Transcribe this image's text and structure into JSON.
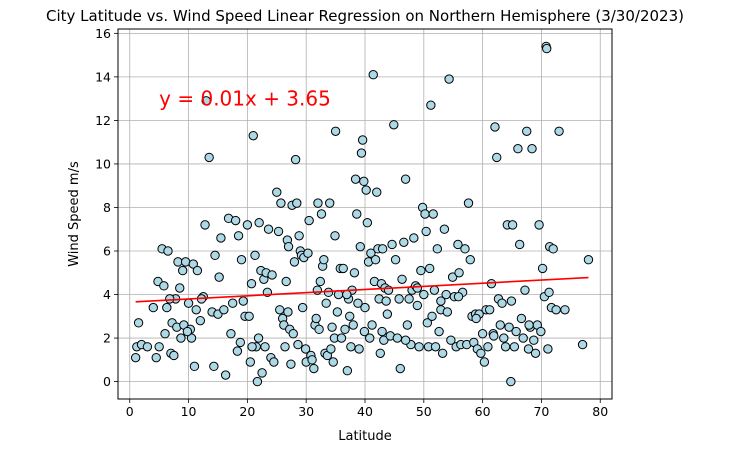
{
  "chart_data": {
    "type": "scatter",
    "title": "City Latitude vs. Wind Speed Linear Regression on Northern Hemisphere (3/30/2023)",
    "xlabel": "Latitude",
    "ylabel": "Wind Speed m/s",
    "xlim": [
      -2,
      82
    ],
    "ylim": [
      -0.8,
      16.2
    ],
    "xticks": [
      0,
      10,
      20,
      30,
      40,
      50,
      60,
      70,
      80
    ],
    "yticks": [
      0,
      2,
      4,
      6,
      8,
      10,
      12,
      14,
      16
    ],
    "grid": true,
    "point_color": "#add8e6",
    "point_edge_color": "#000000",
    "regression": {
      "equation": "y = 0.01x + 3.65",
      "slope": 0.0145,
      "intercept": 3.65,
      "x_range": [
        1,
        78
      ],
      "color": "#ff0000",
      "label_x": 5,
      "label_y": 13
    },
    "points": [
      [
        1,
        1.1
      ],
      [
        1.2,
        1.6
      ],
      [
        1.5,
        2.7
      ],
      [
        2,
        1.7
      ],
      [
        3,
        1.6
      ],
      [
        4,
        3.4
      ],
      [
        4.5,
        1.1
      ],
      [
        4.8,
        4.6
      ],
      [
        5,
        1.6
      ],
      [
        5.5,
        6.1
      ],
      [
        5.8,
        4.4
      ],
      [
        6,
        2.2
      ],
      [
        6.3,
        3.4
      ],
      [
        6.5,
        6.0
      ],
      [
        7,
        1.3
      ],
      [
        7.2,
        2.7
      ],
      [
        7.5,
        1.2
      ],
      [
        7.8,
        3.8
      ],
      [
        8,
        2.5
      ],
      [
        8.2,
        5.5
      ],
      [
        8.5,
        4.3
      ],
      [
        8.7,
        2.0
      ],
      [
        9,
        5.1
      ],
      [
        9.2,
        2.6
      ],
      [
        9.5,
        5.5
      ],
      [
        10,
        3.6
      ],
      [
        10.3,
        2.4
      ],
      [
        10.5,
        2.0
      ],
      [
        10.8,
        5.4
      ],
      [
        11,
        0.7
      ],
      [
        11.3,
        3.3
      ],
      [
        11.5,
        5.1
      ],
      [
        12,
        2.8
      ],
      [
        12.5,
        3.9
      ],
      [
        12.8,
        7.2
      ],
      [
        13,
        12.9
      ],
      [
        13.5,
        10.3
      ],
      [
        14,
        3.2
      ],
      [
        14.3,
        0.7
      ],
      [
        14.5,
        5.8
      ],
      [
        15,
        3.1
      ],
      [
        15.2,
        4.8
      ],
      [
        15.5,
        6.6
      ],
      [
        16,
        3.3
      ],
      [
        16.3,
        0.3
      ],
      [
        16.8,
        7.5
      ],
      [
        17.2,
        2.2
      ],
      [
        17.5,
        3.6
      ],
      [
        18,
        7.4
      ],
      [
        18.3,
        1.4
      ],
      [
        18.5,
        6.7
      ],
      [
        18.8,
        1.8
      ],
      [
        19,
        5.6
      ],
      [
        19.3,
        3.7
      ],
      [
        19.6,
        3.0
      ],
      [
        20,
        7.2
      ],
      [
        20.3,
        3.0
      ],
      [
        20.5,
        0.9
      ],
      [
        20.7,
        4.5
      ],
      [
        21,
        11.3
      ],
      [
        21.3,
        5.8
      ],
      [
        21.5,
        1.6
      ],
      [
        21.7,
        0.0
      ],
      [
        21.9,
        2.0
      ],
      [
        22,
        7.3
      ],
      [
        22.3,
        5.1
      ],
      [
        22.5,
        0.4
      ],
      [
        22.8,
        4.7
      ],
      [
        23,
        1.6
      ],
      [
        23.2,
        5.0
      ],
      [
        23.4,
        4.1
      ],
      [
        23.6,
        7.0
      ],
      [
        24,
        1.1
      ],
      [
        24.5,
        0.9
      ],
      [
        25,
        8.7
      ],
      [
        25.3,
        6.9
      ],
      [
        25.5,
        3.3
      ],
      [
        25.7,
        8.2
      ],
      [
        26,
        2.9
      ],
      [
        26.2,
        2.6
      ],
      [
        26.4,
        1.6
      ],
      [
        26.6,
        4.6
      ],
      [
        26.8,
        6.5
      ],
      [
        27,
        6.2
      ],
      [
        27.2,
        2.4
      ],
      [
        27.4,
        0.8
      ],
      [
        27.6,
        8.1
      ],
      [
        27.8,
        2.2
      ],
      [
        28,
        5.5
      ],
      [
        28.2,
        10.2
      ],
      [
        28.4,
        8.2
      ],
      [
        28.6,
        1.7
      ],
      [
        28.8,
        6.7
      ],
      [
        29,
        6.0
      ],
      [
        29.2,
        5.8
      ],
      [
        29.4,
        3.4
      ],
      [
        29.6,
        5.7
      ],
      [
        30,
        0.9
      ],
      [
        30.3,
        5.9
      ],
      [
        30.5,
        7.4
      ],
      [
        30.8,
        1.2
      ],
      [
        31,
        1.0
      ],
      [
        31.3,
        0.6
      ],
      [
        31.5,
        2.6
      ],
      [
        31.7,
        2.9
      ],
      [
        32,
        8.2
      ],
      [
        32.2,
        2.4
      ],
      [
        32.4,
        4.6
      ],
      [
        32.6,
        7.7
      ],
      [
        32.8,
        5.3
      ],
      [
        33,
        5.6
      ],
      [
        33.2,
        1.3
      ],
      [
        33.4,
        3.6
      ],
      [
        33.6,
        1.2
      ],
      [
        33.8,
        4.1
      ],
      [
        34,
        8.2
      ],
      [
        34.2,
        1.5
      ],
      [
        34.4,
        2.5
      ],
      [
        34.6,
        0.9
      ],
      [
        34.8,
        2.0
      ],
      [
        35,
        11.5
      ],
      [
        35.3,
        3.2
      ],
      [
        35.5,
        4.0
      ],
      [
        35.8,
        5.2
      ],
      [
        36,
        2.0
      ],
      [
        36.3,
        5.2
      ],
      [
        36.6,
        2.4
      ],
      [
        37,
        0.5
      ],
      [
        37.2,
        3.8
      ],
      [
        37.4,
        3.0
      ],
      [
        37.6,
        1.6
      ],
      [
        37.8,
        4.2
      ],
      [
        38,
        2.6
      ],
      [
        38.2,
        5.0
      ],
      [
        38.4,
        9.3
      ],
      [
        38.6,
        7.7
      ],
      [
        38.8,
        3.6
      ],
      [
        39,
        1.5
      ],
      [
        39.2,
        6.2
      ],
      [
        39.4,
        10.5
      ],
      [
        39.6,
        11.1
      ],
      [
        39.8,
        9.2
      ],
      [
        40,
        3.4
      ],
      [
        40.2,
        8.8
      ],
      [
        40.4,
        7.3
      ],
      [
        40.6,
        5.5
      ],
      [
        40.8,
        2.0
      ],
      [
        41,
        5.9
      ],
      [
        41.2,
        2.6
      ],
      [
        41.4,
        14.1
      ],
      [
        41.6,
        4.6
      ],
      [
        41.8,
        5.6
      ],
      [
        42,
        8.7
      ],
      [
        42.2,
        6.1
      ],
      [
        42.4,
        3.8
      ],
      [
        42.6,
        1.3
      ],
      [
        42.8,
        4.5
      ],
      [
        43,
        6.1
      ],
      [
        43.2,
        1.9
      ],
      [
        43.4,
        4.3
      ],
      [
        43.6,
        3.7
      ],
      [
        43.8,
        3.1
      ],
      [
        44,
        4.2
      ],
      [
        44.3,
        2.1
      ],
      [
        44.6,
        6.3
      ],
      [
        44.9,
        11.8
      ],
      [
        45.2,
        5.6
      ],
      [
        45.5,
        2.0
      ],
      [
        45.8,
        3.8
      ],
      [
        46,
        0.6
      ],
      [
        46.3,
        4.7
      ],
      [
        46.6,
        6.4
      ],
      [
        46.9,
        9.3
      ],
      [
        47.2,
        2.6
      ],
      [
        47.5,
        3.8
      ],
      [
        47.8,
        1.7
      ],
      [
        48,
        4.2
      ],
      [
        48.3,
        6.6
      ],
      [
        48.6,
        4.4
      ],
      [
        48.9,
        3.5
      ],
      [
        49.2,
        1.6
      ],
      [
        49.5,
        5.1
      ],
      [
        49.8,
        8.0
      ],
      [
        50,
        4.0
      ],
      [
        50.2,
        7.7
      ],
      [
        50.4,
        6.9
      ],
      [
        50.6,
        2.7
      ],
      [
        50.8,
        1.6
      ],
      [
        51,
        5.2
      ],
      [
        51.2,
        12.7
      ],
      [
        51.4,
        3.0
      ],
      [
        51.6,
        7.7
      ],
      [
        51.8,
        4.2
      ],
      [
        52,
        1.6
      ],
      [
        52.3,
        6.1
      ],
      [
        52.6,
        2.3
      ],
      [
        52.9,
        3.3
      ],
      [
        53.2,
        1.3
      ],
      [
        53.5,
        7.0
      ],
      [
        53.8,
        4.0
      ],
      [
        54,
        3.2
      ],
      [
        54.3,
        13.9
      ],
      [
        54.6,
        1.9
      ],
      [
        54.9,
        4.8
      ],
      [
        55.2,
        3.9
      ],
      [
        55.5,
        1.6
      ],
      [
        55.8,
        6.3
      ],
      [
        56,
        5.0
      ],
      [
        56.3,
        1.7
      ],
      [
        56.6,
        4.1
      ],
      [
        57,
        6.1
      ],
      [
        57.3,
        1.7
      ],
      [
        57.6,
        8.2
      ],
      [
        57.9,
        5.6
      ],
      [
        58.2,
        3.0
      ],
      [
        58.5,
        1.8
      ],
      [
        58.8,
        3.1
      ],
      [
        59.1,
        1.5
      ],
      [
        59.4,
        3.1
      ],
      [
        59.7,
        1.3
      ],
      [
        60,
        2.2
      ],
      [
        60.3,
        0.9
      ],
      [
        60.6,
        3.3
      ],
      [
        60.9,
        1.6
      ],
      [
        61.2,
        3.3
      ],
      [
        61.5,
        4.5
      ],
      [
        61.8,
        2.2
      ],
      [
        62.1,
        11.7
      ],
      [
        62.4,
        10.3
      ],
      [
        62.7,
        3.8
      ],
      [
        63,
        2.6
      ],
      [
        63.3,
        3.6
      ],
      [
        63.6,
        2.0
      ],
      [
        63.9,
        1.6
      ],
      [
        64.2,
        7.2
      ],
      [
        64.5,
        2.5
      ],
      [
        64.8,
        0.0
      ],
      [
        65.1,
        7.2
      ],
      [
        65.4,
        1.6
      ],
      [
        65.7,
        2.3
      ],
      [
        66,
        10.7
      ],
      [
        66.3,
        6.3
      ],
      [
        66.6,
        2.9
      ],
      [
        66.9,
        2.0
      ],
      [
        67.2,
        4.2
      ],
      [
        67.5,
        11.5
      ],
      [
        67.8,
        1.5
      ],
      [
        68.1,
        2.5
      ],
      [
        68.4,
        10.7
      ],
      [
        68.7,
        1.9
      ],
      [
        69,
        1.3
      ],
      [
        69.3,
        2.6
      ],
      [
        69.6,
        7.2
      ],
      [
        69.9,
        2.3
      ],
      [
        70.2,
        5.2
      ],
      [
        70.5,
        3.9
      ],
      [
        70.8,
        15.4
      ],
      [
        71.1,
        1.5
      ],
      [
        71.4,
        6.2
      ],
      [
        71.7,
        3.4
      ],
      [
        72,
        6.1
      ],
      [
        72.5,
        3.3
      ],
      [
        73,
        11.5
      ],
      [
        74,
        3.3
      ],
      [
        77,
        1.7
      ],
      [
        78,
        5.6
      ],
      [
        6.8,
        3.8
      ],
      [
        9.8,
        2.3
      ],
      [
        12.2,
        3.8
      ],
      [
        20.8,
        1.6
      ],
      [
        24.2,
        4.9
      ],
      [
        26.9,
        3.2
      ],
      [
        29.9,
        1.5
      ],
      [
        31.9,
        4.2
      ],
      [
        34.9,
        6.7
      ],
      [
        36.9,
        4.0
      ],
      [
        39.9,
        2.3
      ],
      [
        42.9,
        2.3
      ],
      [
        46.9,
        1.9
      ],
      [
        48.9,
        4.3
      ],
      [
        52.9,
        3.7
      ],
      [
        55.9,
        3.9
      ],
      [
        58.9,
        2.9
      ],
      [
        61.9,
        2.1
      ],
      [
        64.9,
        3.7
      ],
      [
        67.9,
        2.6
      ],
      [
        71.3,
        4.1
      ],
      [
        70.9,
        15.3
      ]
    ]
  }
}
